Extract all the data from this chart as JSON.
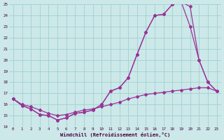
{
  "xlabel": "Windchill (Refroidissement éolien,°C)",
  "xlim": [
    -0.5,
    23.5
  ],
  "ylim": [
    14,
    25
  ],
  "yticks": [
    14,
    15,
    16,
    17,
    18,
    19,
    20,
    21,
    22,
    23,
    24,
    25
  ],
  "xticks": [
    0,
    1,
    2,
    3,
    4,
    5,
    6,
    7,
    8,
    9,
    10,
    11,
    12,
    13,
    14,
    15,
    16,
    17,
    18,
    19,
    20,
    21,
    22,
    23
  ],
  "bg_color": "#cce8e8",
  "line_color": "#993399",
  "line1_x": [
    0,
    1,
    2,
    3,
    4,
    5,
    6,
    7,
    8,
    9,
    10,
    11,
    12,
    13,
    14,
    15,
    16,
    17,
    18,
    19,
    20,
    21,
    22,
    23
  ],
  "line1_y": [
    16.5,
    15.9,
    15.6,
    15.1,
    15.0,
    14.6,
    14.8,
    15.2,
    15.3,
    15.5,
    16.0,
    17.2,
    17.5,
    18.4,
    20.5,
    22.5,
    24.0,
    24.1,
    25.0,
    25.2,
    24.8,
    20.0,
    18.0,
    17.2
  ],
  "line2_x": [
    0,
    1,
    2,
    3,
    4,
    5,
    6,
    7,
    8,
    9,
    10,
    11,
    12,
    13,
    14,
    15,
    16,
    17,
    18,
    19,
    20,
    21,
    22,
    23
  ],
  "line2_y": [
    16.5,
    15.9,
    15.6,
    15.1,
    15.0,
    14.6,
    14.8,
    15.2,
    15.3,
    15.5,
    16.0,
    17.2,
    17.5,
    18.4,
    20.5,
    22.5,
    24.0,
    24.1,
    25.0,
    25.2,
    23.0,
    20.0,
    18.0,
    17.2
  ],
  "line3_x": [
    0,
    1,
    2,
    3,
    4,
    5,
    6,
    7,
    8,
    9,
    10,
    11,
    12,
    13,
    14,
    15,
    16,
    17,
    18,
    19,
    20,
    21,
    22,
    23
  ],
  "line3_y": [
    16.5,
    16.0,
    15.8,
    15.5,
    15.2,
    15.0,
    15.1,
    15.3,
    15.5,
    15.6,
    15.8,
    16.0,
    16.2,
    16.5,
    16.7,
    16.9,
    17.0,
    17.1,
    17.2,
    17.3,
    17.4,
    17.5,
    17.5,
    17.2
  ]
}
